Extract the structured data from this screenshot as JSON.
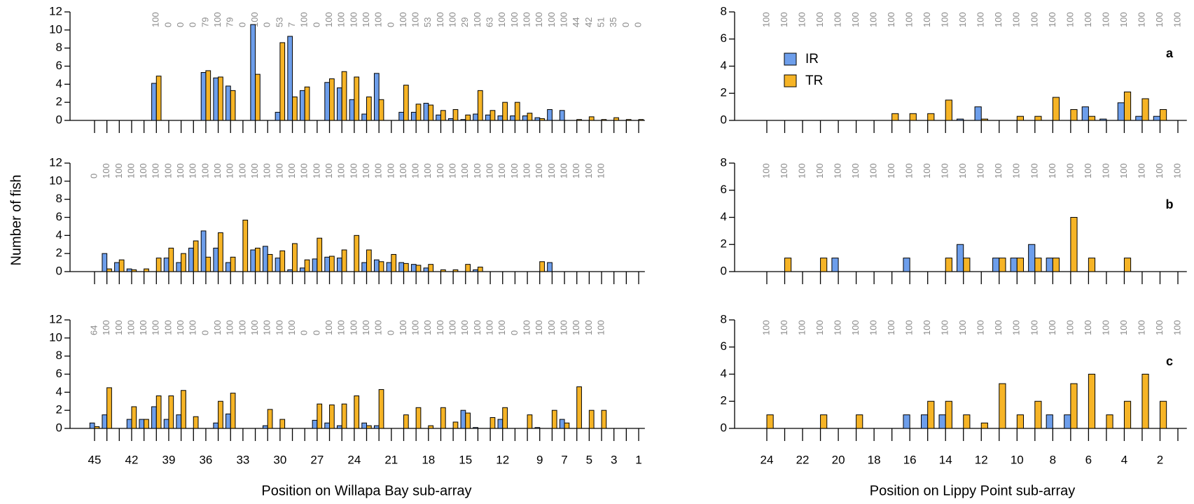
{
  "chart_data": [
    {
      "type": "bar",
      "ylabel": "Number of fish",
      "series": [
        {
          "name": "IR",
          "color": "#6d9eeb",
          "values": [
            0,
            0,
            0,
            0,
            0,
            4.1,
            0,
            0,
            0,
            5.3,
            4.7,
            3.8,
            0,
            10.6,
            0,
            0.9,
            9.3,
            3.3,
            0,
            4.2,
            3.6,
            2.3,
            0.7,
            5.2,
            0,
            0.9,
            0.9,
            1.9,
            0.6,
            0.2,
            0.1,
            0.7,
            0.6,
            0.5,
            0.5,
            0.5,
            0.3,
            1.2,
            1.1,
            0,
            0,
            0,
            0,
            0,
            0
          ]
        },
        {
          "name": "TR",
          "color": "#f6b426",
          "values": [
            0,
            0,
            0,
            0,
            0,
            4.9,
            0,
            0,
            0,
            5.5,
            4.8,
            3.3,
            0,
            5.1,
            0,
            8.6,
            2.6,
            3.7,
            0,
            4.6,
            5.4,
            4.8,
            2.6,
            2.3,
            0,
            3.9,
            1.8,
            1.7,
            1.1,
            1.2,
            0.6,
            3.3,
            1.1,
            2.0,
            2.0,
            0.8,
            0.2,
            0,
            0,
            0.1,
            0.4,
            0.1,
            0.3,
            0.1,
            0.1
          ]
        }
      ],
      "top_labels": [
        null,
        null,
        null,
        null,
        null,
        100,
        0,
        0,
        0,
        79,
        100,
        79,
        0,
        100,
        0,
        53,
        7,
        100,
        0,
        100,
        100,
        100,
        100,
        100,
        0,
        100,
        100,
        53,
        100,
        100,
        29,
        100,
        63,
        100,
        100,
        100,
        100,
        100,
        100,
        44,
        42,
        51,
        35,
        0,
        0
      ],
      "ylim": [
        0,
        12
      ],
      "yticks": [
        0,
        2,
        4,
        6,
        8,
        10,
        12
      ]
    },
    {
      "type": "bar",
      "series": [
        {
          "name": "IR",
          "color": "#6d9eeb",
          "values": [
            0,
            2.0,
            1.0,
            0.3,
            0,
            0,
            1.5,
            1.0,
            2.6,
            4.5,
            2.6,
            1.0,
            0,
            2.4,
            2.8,
            1.5,
            0.2,
            0.4,
            1.4,
            1.6,
            1.5,
            0,
            1.0,
            1.3,
            1.0,
            1.0,
            0.8,
            0.4,
            0,
            0,
            0,
            0.2,
            0,
            0,
            0,
            0,
            0,
            1.0,
            0,
            0,
            0,
            0,
            0,
            0,
            0
          ]
        },
        {
          "name": "TR",
          "color": "#f6b426",
          "values": [
            0,
            0.3,
            1.3,
            0.2,
            0.3,
            1.5,
            2.6,
            2.0,
            3.4,
            1.6,
            4.3,
            1.6,
            5.7,
            2.6,
            1.9,
            2.3,
            3.1,
            1.3,
            3.7,
            1.7,
            2.4,
            4.0,
            2.4,
            1.1,
            1.9,
            0.9,
            0.7,
            0.8,
            0.2,
            0.2,
            0.8,
            0.5,
            0,
            0,
            0,
            0,
            1.1,
            0,
            0,
            0,
            0,
            0,
            0,
            0,
            0
          ]
        }
      ],
      "top_labels": [
        0,
        100,
        100,
        100,
        100,
        100,
        100,
        100,
        100,
        100,
        100,
        100,
        100,
        100,
        100,
        100,
        100,
        100,
        100,
        100,
        100,
        100,
        100,
        100,
        100,
        100,
        100,
        100,
        100,
        100,
        100,
        100,
        100,
        100,
        100,
        100,
        100,
        100,
        100,
        100,
        100,
        100,
        null,
        null,
        null
      ],
      "ylim": [
        0,
        12
      ],
      "yticks": [
        0,
        2,
        4,
        6,
        8,
        10,
        12
      ]
    },
    {
      "type": "bar",
      "xlabel": "Position on Willapa Bay sub-array",
      "categories": [
        45,
        null,
        null,
        42,
        null,
        null,
        39,
        null,
        null,
        36,
        null,
        null,
        33,
        null,
        null,
        30,
        null,
        null,
        27,
        null,
        null,
        24,
        null,
        null,
        21,
        null,
        null,
        18,
        null,
        null,
        15,
        null,
        null,
        12,
        null,
        null,
        9,
        null,
        7,
        null,
        5,
        null,
        3,
        null,
        1
      ],
      "series": [
        {
          "name": "IR",
          "color": "#6d9eeb",
          "values": [
            0.6,
            1.5,
            0,
            1.0,
            1.0,
            2.4,
            1.0,
            1.5,
            0,
            0,
            0.6,
            1.6,
            0,
            0,
            0.3,
            0,
            0,
            0,
            0.9,
            0.6,
            0.3,
            0,
            0.6,
            0.3,
            0,
            0,
            0,
            0,
            0,
            0,
            2.0,
            0.1,
            0,
            1.0,
            0,
            0,
            0.1,
            0,
            1.0,
            0,
            0,
            0,
            0,
            0,
            0
          ]
        },
        {
          "name": "TR",
          "color": "#f6b426",
          "values": [
            0.2,
            4.5,
            0,
            2.4,
            1.0,
            3.6,
            3.6,
            4.2,
            1.3,
            0,
            3.0,
            3.9,
            0,
            0,
            2.1,
            1.0,
            0,
            0,
            2.7,
            2.6,
            2.7,
            3.6,
            0.3,
            4.3,
            0,
            1.5,
            2.3,
            0.3,
            2.3,
            0.7,
            1.7,
            0,
            1.2,
            2.3,
            0,
            1.5,
            0,
            2.0,
            0.6,
            4.6,
            2.0,
            2.0,
            0,
            0,
            0
          ]
        }
      ],
      "top_labels": [
        64,
        100,
        100,
        100,
        100,
        100,
        100,
        100,
        100,
        0,
        100,
        100,
        100,
        100,
        100,
        100,
        100,
        0,
        0,
        100,
        100,
        100,
        100,
        100,
        0,
        100,
        100,
        100,
        100,
        100,
        100,
        100,
        100,
        100,
        0,
        100,
        100,
        100,
        100,
        100,
        100,
        100,
        null,
        null,
        null
      ],
      "ylim": [
        0,
        12
      ],
      "yticks": [
        0,
        2,
        4,
        6,
        8,
        10,
        12
      ]
    },
    {
      "type": "bar",
      "panel_label": "a",
      "legend": "top-left",
      "series": [
        {
          "name": "IR",
          "color": "#6d9eeb",
          "values": [
            0,
            0,
            0,
            0,
            0,
            0,
            0,
            0,
            0,
            0,
            0,
            0.1,
            1.0,
            0,
            0,
            0,
            0,
            0,
            1.0,
            0.1,
            1.3,
            0.3,
            0.3,
            0
          ]
        },
        {
          "name": "TR",
          "color": "#f6b426",
          "values": [
            0,
            0,
            0,
            0,
            0,
            0,
            0,
            0.5,
            0.5,
            0.5,
            1.5,
            0,
            0.1,
            0,
            0.3,
            0.3,
            1.7,
            0.8,
            0.3,
            0,
            2.1,
            1.6,
            0.8,
            0
          ]
        }
      ],
      "top_labels": [
        100,
        100,
        100,
        100,
        100,
        100,
        100,
        100,
        100,
        100,
        100,
        100,
        100,
        100,
        100,
        100,
        100,
        100,
        100,
        100,
        100,
        100,
        100,
        100
      ],
      "ylim": [
        0,
        8
      ],
      "yticks": [
        0,
        2,
        4,
        6,
        8
      ]
    },
    {
      "type": "bar",
      "panel_label": "b",
      "series": [
        {
          "name": "IR",
          "color": "#6d9eeb",
          "values": [
            0,
            0,
            0,
            0,
            1,
            0,
            0,
            0,
            1,
            0,
            0,
            2,
            0,
            1,
            1,
            2,
            1,
            0,
            0,
            0,
            0,
            0,
            0,
            0
          ]
        },
        {
          "name": "TR",
          "color": "#f6b426",
          "values": [
            0,
            1,
            0,
            1,
            0,
            0,
            0,
            0,
            0,
            0,
            1,
            1,
            0,
            1,
            1,
            1,
            1,
            4,
            1,
            0,
            1,
            0,
            0,
            0
          ]
        }
      ],
      "top_labels": [
        100,
        100,
        100,
        100,
        100,
        100,
        100,
        100,
        100,
        100,
        100,
        100,
        100,
        100,
        100,
        100,
        100,
        100,
        100,
        100,
        100,
        100,
        100,
        100
      ],
      "ylim": [
        0,
        8
      ],
      "yticks": [
        0,
        2,
        4,
        6,
        8
      ]
    },
    {
      "type": "bar",
      "panel_label": "c",
      "xlabel": "Position on Lippy Point sub-array",
      "categories": [
        24,
        null,
        22,
        null,
        20,
        null,
        18,
        null,
        16,
        null,
        14,
        null,
        12,
        null,
        10,
        null,
        8,
        null,
        6,
        null,
        4,
        null,
        2,
        null
      ],
      "series": [
        {
          "name": "IR",
          "color": "#6d9eeb",
          "values": [
            0,
            0,
            0,
            0,
            0,
            0,
            0,
            0,
            1,
            1,
            1,
            0,
            0,
            0,
            0,
            0,
            1,
            1,
            0,
            0,
            0,
            0,
            0,
            0
          ]
        },
        {
          "name": "TR",
          "color": "#f6b426",
          "values": [
            1,
            0,
            0,
            1,
            0,
            1,
            0,
            0,
            0,
            2,
            2,
            1,
            0.4,
            3.3,
            1,
            2,
            0,
            3.3,
            4,
            1,
            2,
            4,
            2,
            0
          ]
        }
      ],
      "top_labels": [
        100,
        100,
        100,
        100,
        100,
        100,
        100,
        100,
        100,
        100,
        100,
        100,
        100,
        100,
        100,
        100,
        100,
        100,
        100,
        100,
        100,
        100,
        100,
        100
      ],
      "ylim": [
        0,
        8
      ],
      "yticks": [
        0,
        2,
        4,
        6,
        8
      ]
    }
  ]
}
